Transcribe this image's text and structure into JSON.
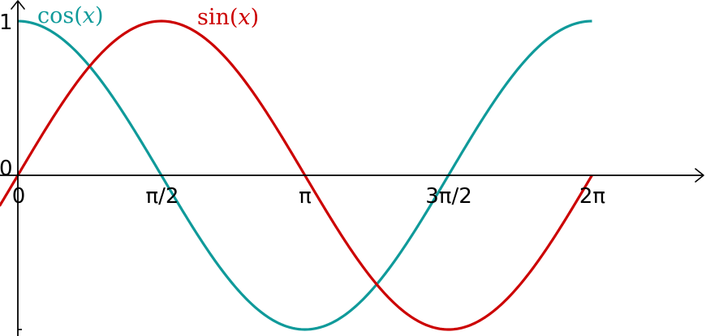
{
  "chart_data": {
    "type": "line",
    "title": "",
    "xlabel": "",
    "ylabel": "",
    "xlim": [
      -0.12,
      4.8
    ],
    "ylim": [
      -1.0,
      1.0
    ],
    "grid": false,
    "x_ticks": [
      {
        "value": 0,
        "label": "0"
      },
      {
        "value": 1.5708,
        "label": "π/2"
      },
      {
        "value": 3.1416,
        "label": "π"
      },
      {
        "value": 4.7124,
        "label": "3π/2"
      },
      {
        "value": 6.2832,
        "label": "2π"
      }
    ],
    "y_ticks": [
      {
        "value": 1,
        "label": "1"
      },
      {
        "value": 0,
        "label": "0"
      },
      {
        "value": -1,
        "label": ""
      }
    ],
    "x_domain": [
      -0.2,
      7.5
    ],
    "series": [
      {
        "name": "cos(x)",
        "label_main": "cos(",
        "label_var": "x",
        "label_close": ")",
        "function": "cos",
        "x_range": [
          0,
          6.2832
        ],
        "color": "#0f9a9a"
      },
      {
        "name": "sin(x)",
        "label_main": "sin(",
        "label_var": "x",
        "label_close": ")",
        "function": "sin",
        "x_range": [
          -0.2,
          6.2832
        ],
        "color": "#cc0000"
      }
    ]
  }
}
